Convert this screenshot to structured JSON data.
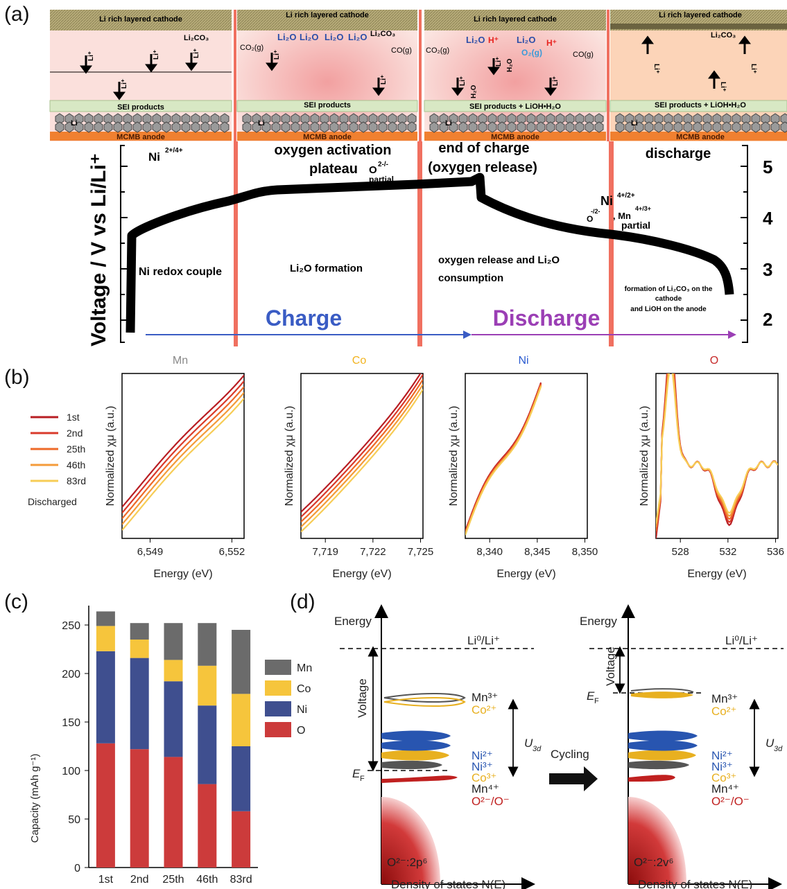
{
  "panels": {
    "a": "(a)",
    "b": "(b)",
    "c": "(c)",
    "d": "(d)"
  },
  "panel_a": {
    "strip": {
      "cathode": "Li rich layered cathode",
      "sei": "SEI products",
      "sei_lioh": "SEI products + LiOH•H₂O",
      "anode": "MCMB anode",
      "li": "Li",
      "li_ion": "Li⁺",
      "li2co3": "Li₂CO₃",
      "li2o": "Li₂O",
      "co2": "CO₂(g)",
      "co": "CO(g)",
      "hplus": "H⁺",
      "h2o": "H₂O",
      "o2": "O₂(g)"
    },
    "region_titles": {
      "ni": "Ni",
      "ni_sup": "2+/4+",
      "oxygen_activation_1": "oxygen activation",
      "oxygen_activation_2": "plateau",
      "o_partial": "O",
      "o_partial_sup": "2-/-",
      "o_partial_sub": "partial",
      "end_of_charge_1": "end of charge",
      "end_of_charge_2": "(oxygen release)",
      "discharge": "discharge",
      "ni_right": "Ni",
      "ni_right_sup": "4+/2+",
      "o_right": "O",
      "o_right_sup": "-/2-",
      "mn_right": ", Mn",
      "mn_right_sup": "4+/3+",
      "mn_right_sub": "partial"
    },
    "region_notes": {
      "ni_redox": "Ni redox couple",
      "li2o_formation": "Li₂O formation",
      "oxygen_release_1": "oxygen release and Li₂O",
      "oxygen_release_2": "consumption",
      "formation_1": "formation of Li₂CO₃ on the",
      "formation_2": "cathode",
      "formation_3": "and LiOH on the anode"
    },
    "arrows": {
      "charge": "Charge",
      "discharge": "Discharge"
    },
    "ylabel": "Voltage / V vs Li/Li⁺",
    "yticks": [
      "5",
      "4",
      "3",
      "2"
    ],
    "colors": {
      "charge": "#3a5cc4",
      "discharge": "#9b3fb5",
      "divider": "#f07060"
    }
  },
  "panel_b": {
    "legend": {
      "items": [
        "1st",
        "2nd",
        "25th",
        "46th",
        "83rd"
      ],
      "caption": "Discharged"
    },
    "colors": [
      "#b81e23",
      "#d93a2b",
      "#ee6a28",
      "#f49b3a",
      "#f7cc55"
    ],
    "ylabel": "Normalized χμ (a.u.)",
    "xlabel": "Energy (eV)",
    "plots": [
      {
        "element": "Mn",
        "color": "#888888",
        "ticks": [
          "6,549",
          "6,552"
        ]
      },
      {
        "element": "Co",
        "color": "#f2b31e",
        "ticks": [
          "7,719",
          "7,722",
          "7,725"
        ]
      },
      {
        "element": "Ni",
        "color": "#2a5bd0",
        "ticks": [
          "8,340",
          "8,345",
          "8,350"
        ]
      },
      {
        "element": "O",
        "color": "#c62828",
        "ticks": [
          "528",
          "532",
          "536"
        ]
      }
    ]
  },
  "chart_data": {
    "type": "bar",
    "stacked": true,
    "categories": [
      "1st",
      "2nd",
      "25th",
      "46th",
      "83rd"
    ],
    "ylabel": "Capacity (mAh g⁻¹)",
    "ylim": [
      0,
      270
    ],
    "yticks": [
      "0",
      "50",
      "100",
      "150",
      "200",
      "250"
    ],
    "series": [
      {
        "name": "O",
        "color": "#cc3b3b",
        "values": [
          128,
          122,
          114,
          86,
          58
        ]
      },
      {
        "name": "Ni",
        "color": "#3f4f8f",
        "values": [
          95,
          94,
          78,
          81,
          67
        ]
      },
      {
        "name": "Co",
        "color": "#f6c53c",
        "values": [
          26,
          19,
          22,
          41,
          54
        ]
      },
      {
        "name": "Mn",
        "color": "#6b6b6b",
        "values": [
          15,
          17,
          38,
          44,
          66
        ]
      }
    ],
    "legend_order": [
      "Mn",
      "Co",
      "Ni",
      "O"
    ],
    "legend_position": "right"
  },
  "panel_d": {
    "energy": "Energy",
    "li_ref": "Li⁰/Li⁺",
    "voltage": "Voltage",
    "ef": "E",
    "ef_sub": "F",
    "dos": "Density of states N(E)",
    "cycling": "Cycling",
    "u3d": "U",
    "u3d_sub": "3d",
    "levels": [
      "Mn³⁺",
      "Co²⁺",
      "Ni²⁺",
      "Ni³⁺",
      "Co³⁺",
      "Mn⁴⁺",
      "O²⁻/O⁻"
    ],
    "o_band_left": "O²⁻:2p⁶",
    "o_band_right": "O²⁻:2v⁶",
    "level_colors": [
      "#555555",
      "#e8b020",
      "#2855b0",
      "#2855b0",
      "#e8b020",
      "#555555",
      "#c0201f"
    ]
  }
}
